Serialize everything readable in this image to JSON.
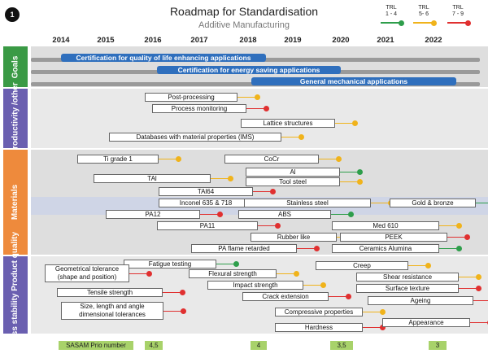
{
  "header": {
    "badge": "1",
    "title": "Roadmap for Standardisation",
    "subtitle": "Additive Manufacturing"
  },
  "legend": [
    {
      "label_top": "TRL",
      "label_bottom": "1 - 4",
      "color": "#2e9e4b"
    },
    {
      "label_top": "TRL",
      "label_bottom": "5- 6",
      "color": "#f0b31b"
    },
    {
      "label_top": "TRL",
      "label_bottom": "7 - 9",
      "color": "#e03030"
    }
  ],
  "years": [
    "2014",
    "2015",
    "2016",
    "2017",
    "2018",
    "2019",
    "2020",
    "2021",
    "2022"
  ],
  "sections": [
    {
      "label": "Goals"
    },
    {
      "label": "Productivity /other"
    },
    {
      "label": "Materials"
    },
    {
      "label": "Process stability Product quality"
    }
  ],
  "goals": [
    "Certification for quality of life enhancing applications",
    "Certification for energy saving applications",
    "General mechanical applications"
  ],
  "items": [
    {
      "label": "Post-processing",
      "trl": "yellow"
    },
    {
      "label": "Process monitoring",
      "trl": "red"
    },
    {
      "label": "Lattice structures",
      "trl": "yellow"
    },
    {
      "label": "Databases with material properties (IMS)",
      "trl": "yellow"
    },
    {
      "label": "Ti grade 1",
      "trl": "yellow"
    },
    {
      "label": "CoCr",
      "trl": "yellow"
    },
    {
      "label": "Al",
      "trl": "green"
    },
    {
      "label": "TAl",
      "trl": "yellow"
    },
    {
      "label": "Tool steel",
      "trl": "yellow"
    },
    {
      "label": "TAl64",
      "trl": "red"
    },
    {
      "label": "Inconel 635 & 718",
      "trl": "yellow"
    },
    {
      "label": "Stainless steel",
      "trl": "yellow"
    },
    {
      "label": "Gold & bronze",
      "trl": "green"
    },
    {
      "label": "PA12",
      "trl": "red"
    },
    {
      "label": "ABS",
      "trl": "green"
    },
    {
      "label": "PA11",
      "trl": "red"
    },
    {
      "label": "Med 610",
      "trl": "yellow"
    },
    {
      "label": "Rubber like",
      "trl": "yellow"
    },
    {
      "label": "PEEK",
      "trl": "red"
    },
    {
      "label": "PA flame retarded",
      "trl": "red"
    },
    {
      "label": "Ceramics Alumina",
      "trl": "green"
    },
    {
      "label": "Fatigue testing",
      "trl": "green"
    },
    {
      "label": "Creep",
      "trl": "yellow"
    },
    {
      "label": "Geometrical tolerance (shape and position)",
      "trl": "red"
    },
    {
      "label": "Flexural strength",
      "trl": "yellow"
    },
    {
      "label": "Shear resistance",
      "trl": "yellow"
    },
    {
      "label": "Impact strength",
      "trl": "yellow"
    },
    {
      "label": "Surface texture",
      "trl": "red"
    },
    {
      "label": "Tensile strength",
      "trl": "red"
    },
    {
      "label": "Crack extension",
      "trl": "red"
    },
    {
      "label": "Ageing",
      "trl": "red"
    },
    {
      "label": "Size, length and angle dimensional tolerances",
      "trl": "red"
    },
    {
      "label": "Compressive properties",
      "trl": "yellow"
    },
    {
      "label": "Hardness",
      "trl": "red"
    },
    {
      "label": "Appearance",
      "trl": "red"
    }
  ],
  "prio": [
    {
      "label": "SASAM Prio number"
    },
    {
      "label": "4,5"
    },
    {
      "label": "4"
    },
    {
      "label": "3,5"
    },
    {
      "label": "3"
    }
  ],
  "colors": {
    "green": "#2e9e4b",
    "yellow": "#f0b31b",
    "red": "#e03030",
    "section": "#ee8a3c",
    "goal": "#2f6fbd",
    "band": "#e4e4e4",
    "band_alt": "#d8d8d8"
  }
}
